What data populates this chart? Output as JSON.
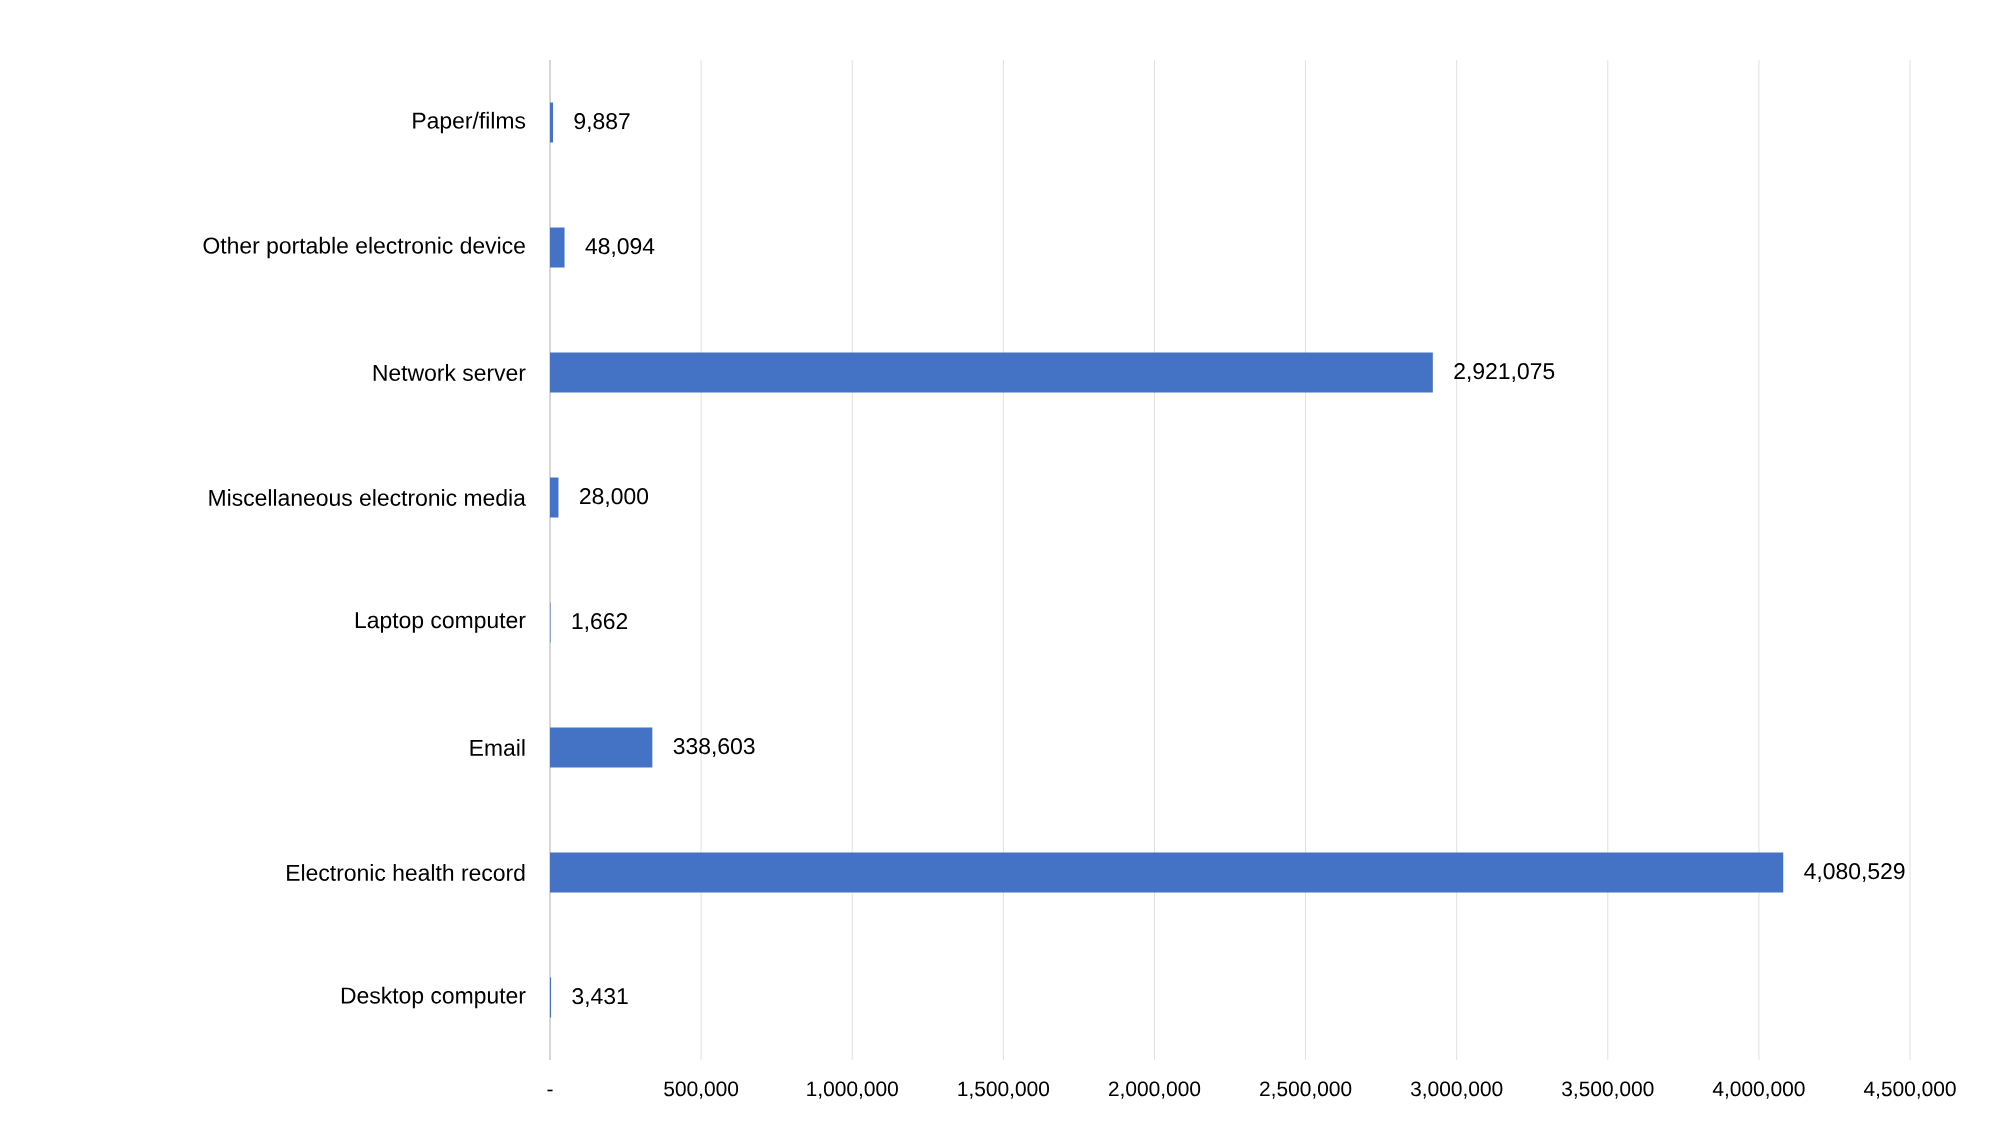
{
  "chart_data": {
    "type": "bar",
    "orientation": "horizontal",
    "categories": [
      "Paper/films",
      "Other portable electronic device",
      "Network server",
      "Miscellaneous electronic media",
      "Laptop computer",
      "Email",
      "Electronic health record",
      "Desktop computer"
    ],
    "values": [
      9887,
      48094,
      2921075,
      28000,
      1662,
      338603,
      4080529,
      3431
    ],
    "value_labels": [
      "9,887",
      "48,094",
      "2,921,075",
      "28,000",
      "1,662",
      "338,603",
      "4,080,529",
      "3,431"
    ],
    "color": "#4472c4",
    "xlim": [
      0,
      4500000
    ],
    "xticks": [
      {
        "value": 0,
        "label": "-"
      },
      {
        "value": 500000,
        "label": "500,000"
      },
      {
        "value": 1000000,
        "label": "1,000,000"
      },
      {
        "value": 1500000,
        "label": "1,500,000"
      },
      {
        "value": 2000000,
        "label": "2,000,000"
      },
      {
        "value": 2500000,
        "label": "2,500,000"
      },
      {
        "value": 3000000,
        "label": "3,000,000"
      },
      {
        "value": 3500000,
        "label": "3,500,000"
      },
      {
        "value": 4000000,
        "label": "4,000,000"
      },
      {
        "value": 4500000,
        "label": "4,500,000"
      }
    ],
    "grid": "x"
  }
}
